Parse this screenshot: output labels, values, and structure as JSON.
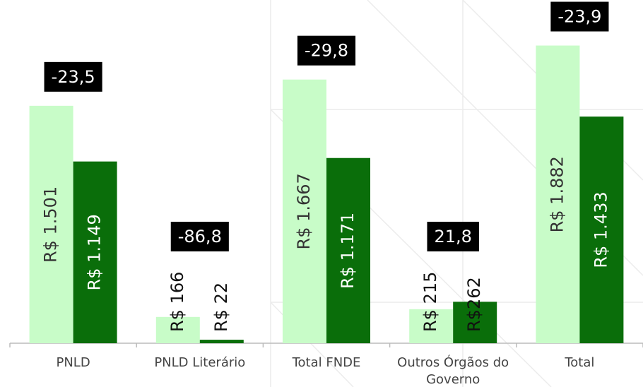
{
  "chart_data": {
    "type": "bar",
    "categories": [
      "PNLD",
      "PNLD Literário",
      "Total FNDE",
      "Outros Órgãos do Governo",
      "Total"
    ],
    "series": [
      {
        "color": "#c8fcc8",
        "values": [
          1501,
          166,
          1667,
          215,
          1882
        ],
        "value_labels": [
          "R$ 1.501",
          "R$ 166",
          "R$ 1.667",
          "R$ 215",
          "R$ 1.882"
        ]
      },
      {
        "color": "#0a6e0a",
        "values": [
          1149,
          22,
          1171,
          262,
          1433
        ],
        "value_labels": [
          "R$ 1.149",
          "R$ 22",
          "R$ 1.171",
          "R$262",
          "R$ 1.433"
        ]
      }
    ],
    "annotations": [
      "-23,5",
      "-86,8",
      "-29,8",
      "21,8",
      "-23,9"
    ],
    "ylim": [
      0,
      2170
    ]
  }
}
